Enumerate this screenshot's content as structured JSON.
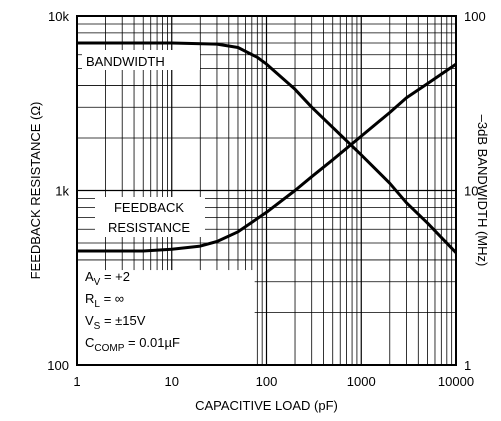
{
  "chart_data": {
    "type": "line",
    "x_scale": "log",
    "y_scale": "log",
    "xlabel": "CAPACITIVE LOAD (pF)",
    "ylabel_left": "FEEDBACK RESISTANCE (Ω)",
    "ylabel_right": "–3dB BANDWIDTH (MHz)",
    "xlim": [
      1,
      10000
    ],
    "ylim_left": [
      100,
      10000
    ],
    "ylim_right": [
      1,
      100
    ],
    "x_ticks": [
      "1",
      "10",
      "100",
      "1000",
      "10000"
    ],
    "y_left_ticks": [
      "100",
      "1k",
      "10k"
    ],
    "y_right_ticks": [
      "1",
      "10",
      "100"
    ],
    "grid": true,
    "series": [
      {
        "name": "BANDWIDTH",
        "axis": "right",
        "x": [
          1,
          10,
          30,
          50,
          80,
          100,
          200,
          300,
          500,
          1000,
          2000,
          3000,
          5000,
          10000
        ],
        "y": [
          70,
          70,
          69,
          66,
          58,
          53,
          38,
          30,
          23,
          16,
          11,
          8.5,
          6.5,
          4.4
        ]
      },
      {
        "name": "FEEDBACK RESISTANCE",
        "axis": "left",
        "x": [
          1,
          5,
          10,
          20,
          30,
          50,
          100,
          200,
          300,
          500,
          1000,
          2000,
          3000,
          5000,
          10000
        ],
        "y": [
          450,
          450,
          460,
          480,
          510,
          580,
          750,
          1000,
          1200,
          1500,
          2050,
          2800,
          3400,
          4100,
          5300
        ]
      }
    ],
    "annotations": {
      "av": {
        "base": "A",
        "sub": "V",
        "value": " = +2"
      },
      "rl": {
        "base": "R",
        "sub": "L",
        "value": " = ∞"
      },
      "vs": {
        "base": "V",
        "sub": "S",
        "value": " = ±15V"
      },
      "ccomp": {
        "base": "C",
        "sub": "COMP",
        "value": " = 0.01µF"
      }
    },
    "labels": {
      "bandwidth": "BANDWIDTH",
      "fr_line1": "FEEDBACK",
      "fr_line2": "RESISTANCE"
    }
  }
}
